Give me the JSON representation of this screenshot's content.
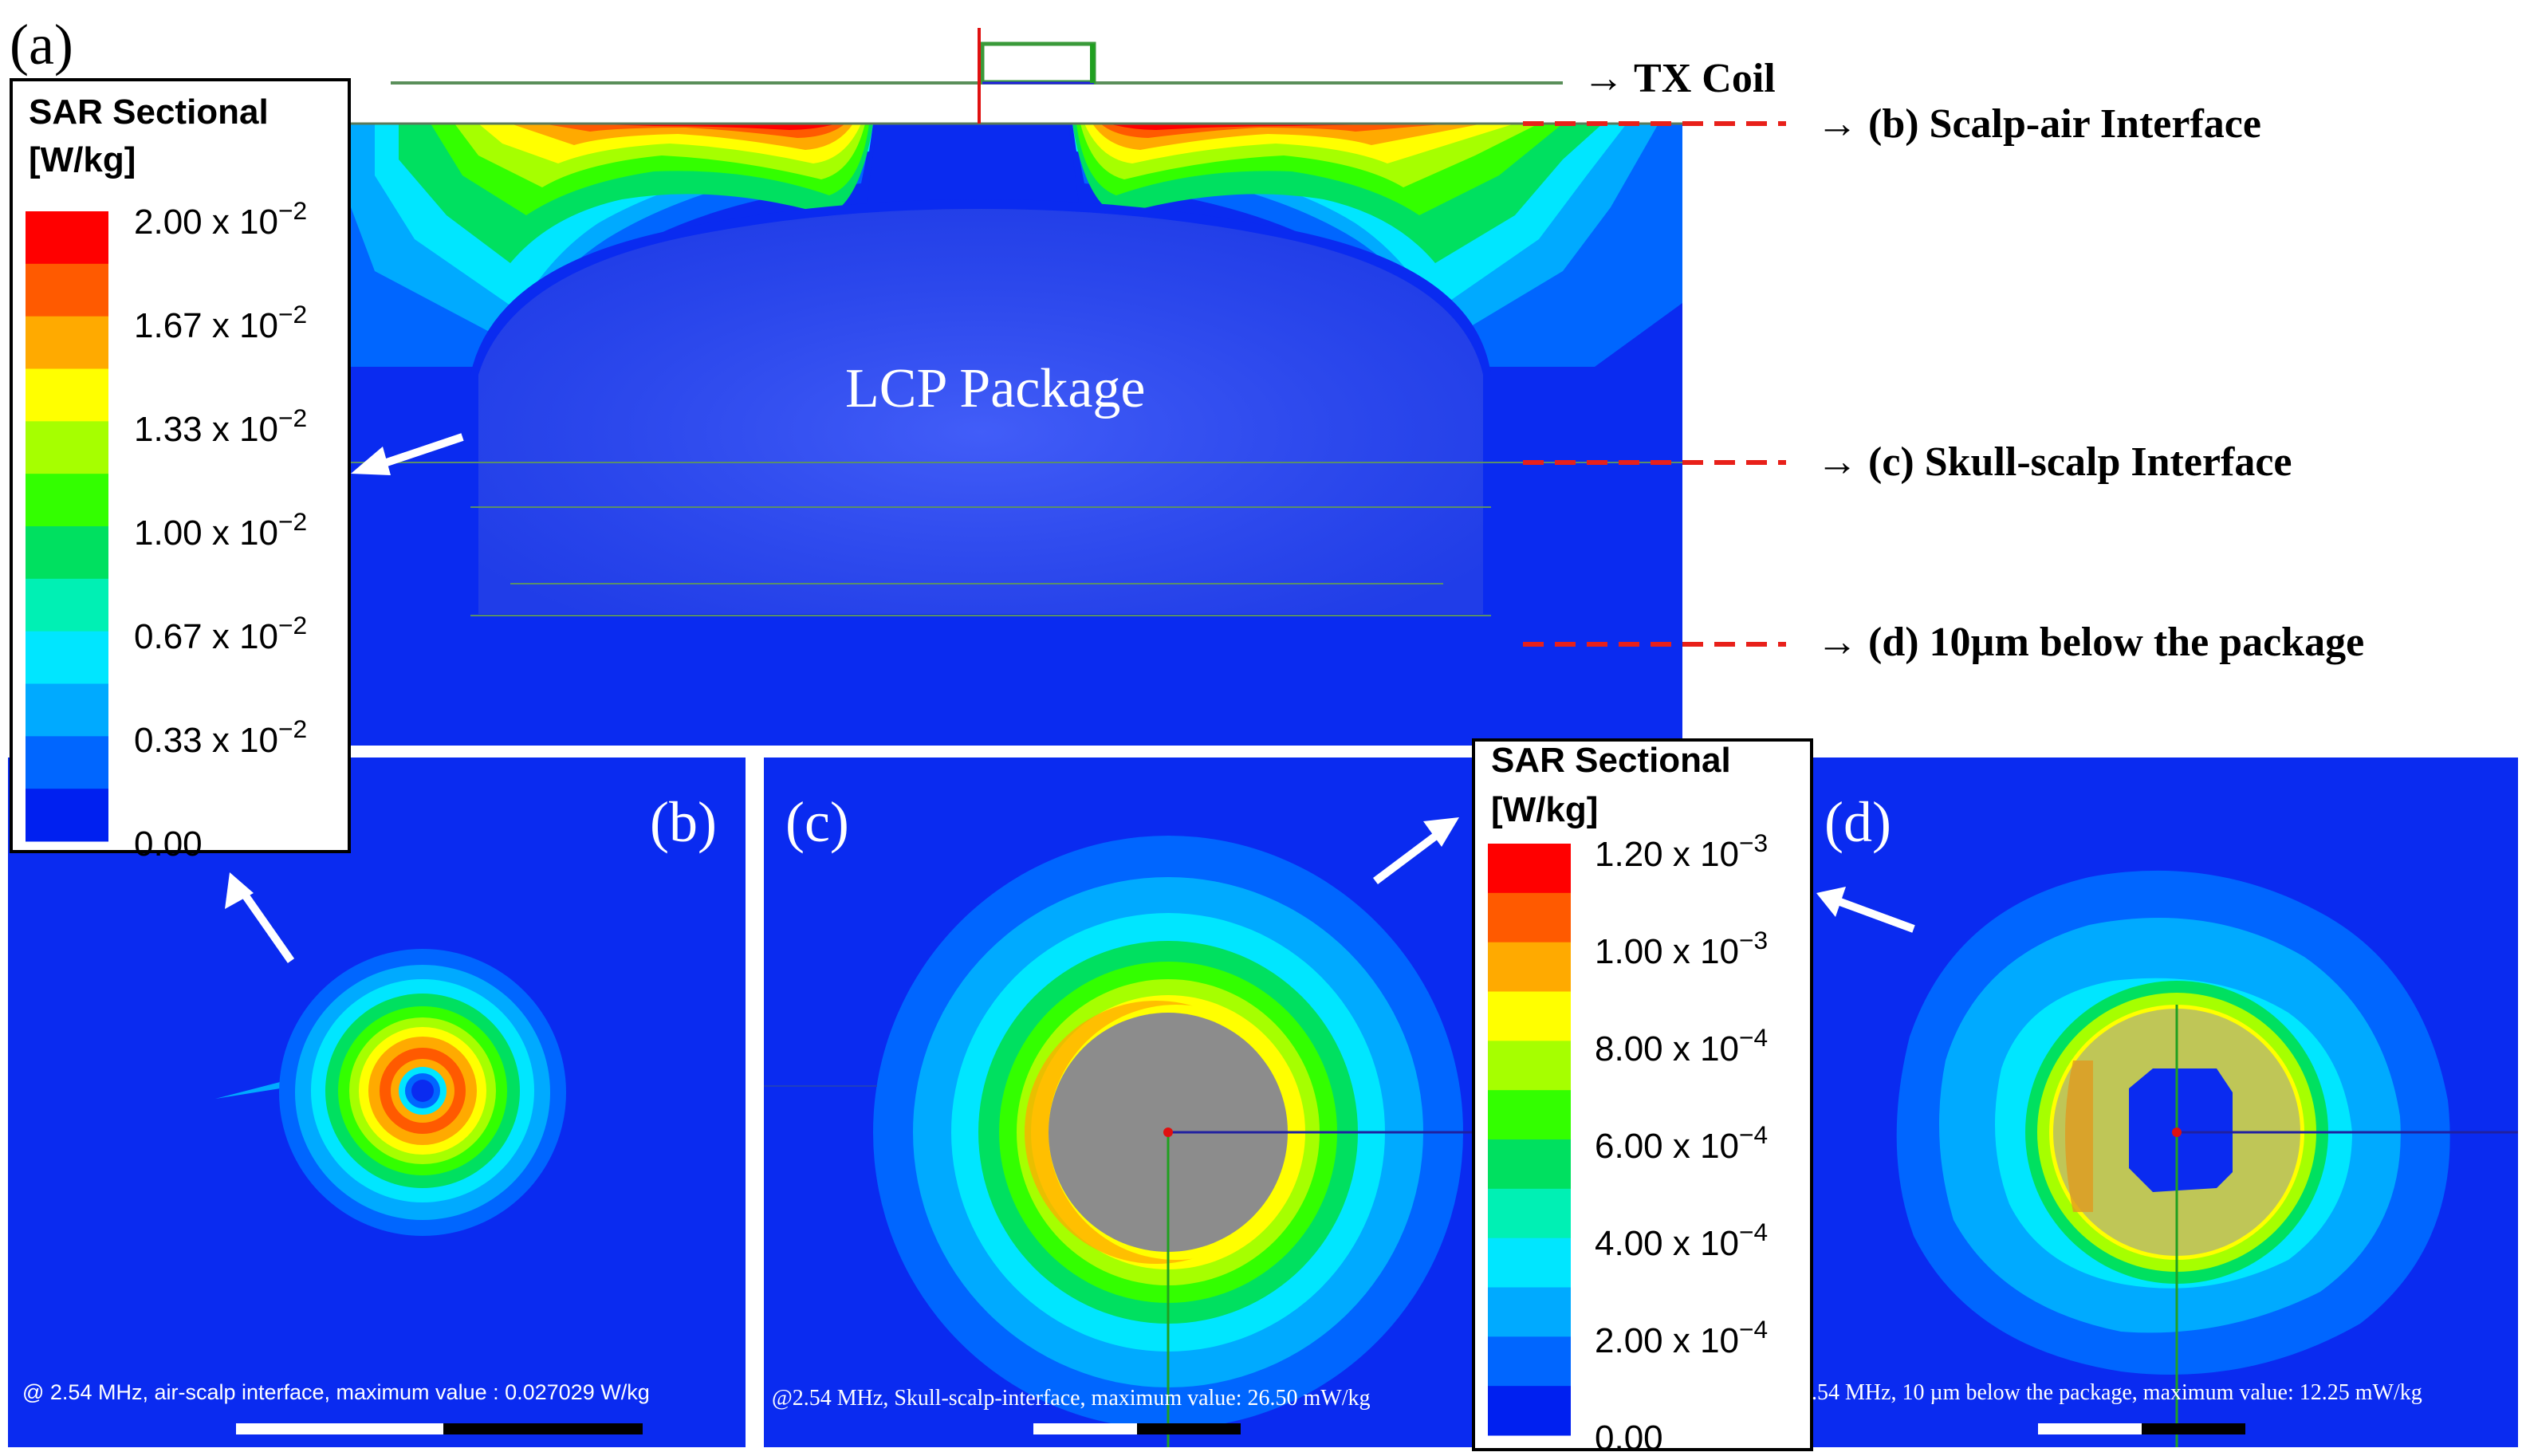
{
  "colors": {
    "background_blue": "#0a2bf0",
    "scale_high": [
      "#ff0000",
      "#ff5a00",
      "#ffaa00",
      "#ffff00",
      "#a6ff00",
      "#33ff00",
      "#00e060",
      "#00f0b4",
      "#00e6ff",
      "#00aaff",
      "#0066ff",
      "#0020f0"
    ],
    "dashed_marker": "#e8201a",
    "package": "#7f8ab8",
    "grey_disc": "#8c8c8c"
  },
  "panel_labels": {
    "a": "(a)",
    "b": "(b)",
    "c": "(c)",
    "d": "(d)"
  },
  "annotations": {
    "tx_coil": "→ TX Coil",
    "scalp_air": "→ (b) Scalp-air  Interface",
    "skull_scalp": "→ (c) Skull-scalp  Interface",
    "below_package": "→ (d) 10µm below the package",
    "package_label": "LCP Package"
  },
  "legend_1": {
    "title_line1": "SAR Sectional",
    "title_line2": "[W/kg]",
    "ticks": [
      {
        "mant": "2.00 x 10",
        "exp": "−2"
      },
      {
        "mant": "1.67 x 10",
        "exp": "−2"
      },
      {
        "mant": "1.33 x 10",
        "exp": "−2"
      },
      {
        "mant": "1.00 x 10",
        "exp": "−2"
      },
      {
        "mant": "0.67 x 10",
        "exp": "−2"
      },
      {
        "mant": "0.33 x 10",
        "exp": "−2"
      },
      {
        "mant": "0.00",
        "exp": ""
      }
    ]
  },
  "legend_2": {
    "title_line1": "SAR Sectional",
    "title_line2": "[W/kg]",
    "ticks": [
      {
        "mant": "1.20 x 10",
        "exp": "−3"
      },
      {
        "mant": "1.00 x 10",
        "exp": "−3"
      },
      {
        "mant": "8.00 x 10",
        "exp": "−4"
      },
      {
        "mant": "6.00 x 10",
        "exp": "−4"
      },
      {
        "mant": "4.00 x 10",
        "exp": "−4"
      },
      {
        "mant": "2.00 x 10",
        "exp": "−4"
      },
      {
        "mant": "0.00",
        "exp": ""
      }
    ]
  },
  "captions": {
    "b": "@ 2.54 MHz, air-scalp interface, maximum value : 0.027029 W/kg",
    "c": "@2.54 MHz, Skull-scalp-interface, maximum value: 26.50 mW/kg",
    "d": ".54 MHz, 10 µm below the package, maximum value: 12.25 mW/kg"
  }
}
